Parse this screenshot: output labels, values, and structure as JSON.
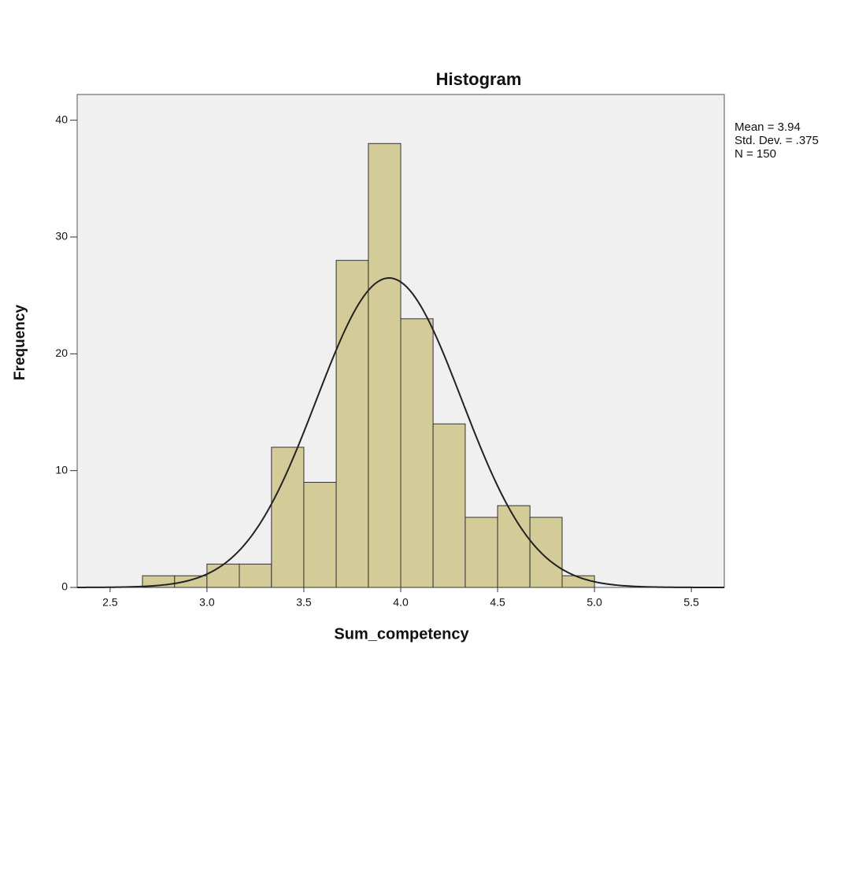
{
  "chart_data": {
    "type": "histogram",
    "title": "Histogram",
    "x_label": "Sum_competency",
    "y_label": "Frequency",
    "bins": [
      2.667,
      2.833,
      3.0,
      3.167,
      3.333,
      3.5,
      3.667,
      3.833,
      4.0,
      4.167,
      4.333,
      4.5,
      4.667,
      4.833,
      5.0
    ],
    "values": [
      1,
      1,
      2,
      2,
      12,
      9,
      28,
      38,
      23,
      14,
      6,
      7,
      6,
      1
    ],
    "color": "#d3cc98",
    "xlim": [
      2.33,
      5.67
    ],
    "xticks": [
      2.5,
      {
        "value": 3.0,
        "label": "3.0"
      },
      3.5,
      {
        "value": 4.0,
        "label": "4.0"
      },
      4.5,
      {
        "value": 5.0,
        "label": "5.0"
      },
      5.5
    ],
    "ylim": [
      0,
      42.2
    ],
    "yticks": [
      0,
      10,
      20,
      30,
      40
    ],
    "curve": {
      "mean": 3.94,
      "std_dev": 0.375,
      "n": 150
    },
    "annotations": [
      "Mean = 3.94",
      "Std. Dev. = .375",
      "N = 150"
    ]
  }
}
